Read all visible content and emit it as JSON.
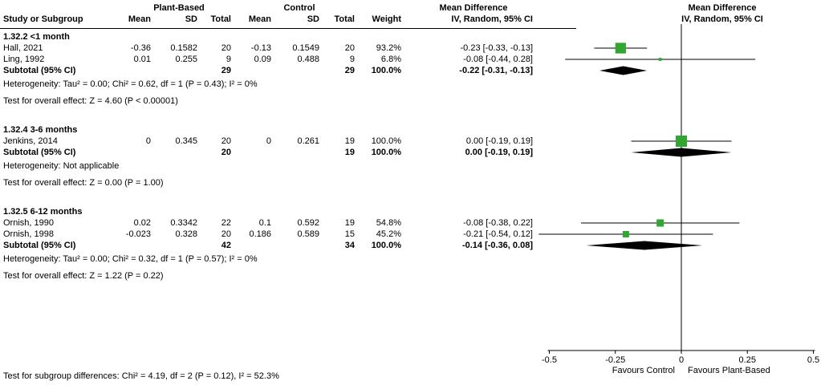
{
  "header": {
    "study_col": "Study or Subgroup",
    "group1": "Plant-Based",
    "group2": "Control",
    "mean": "Mean",
    "sd": "SD",
    "total": "Total",
    "weight": "Weight",
    "md_title": "Mean Difference",
    "md_subtitle": "IV, Random, 95% CI",
    "plot_title": "Mean Difference",
    "plot_subtitle": "IV, Random, 95% CI"
  },
  "footer": {
    "subgroup_test": "Test for subgroup differences: Chi² = 4.19, df = 2 (P = 0.12), I² = 52.3%"
  },
  "chart_data": {
    "type": "forest",
    "effect_measure": "Mean Difference",
    "method": "IV, Random, 95% CI",
    "colors": {
      "marker": "#33a532",
      "diamond": "#000000",
      "line": "#000000"
    },
    "axis": {
      "min": -0.5,
      "max": 0.5,
      "ticks": [
        -0.5,
        -0.25,
        0,
        0.25,
        0.5
      ],
      "tick_labels": [
        "-0.5",
        "-0.25",
        "0",
        "0.25",
        "0.5"
      ],
      "label_left": "Favours Control",
      "label_right": "Favours Plant-Based"
    },
    "subgroups": [
      {
        "label": "1.32.2 <1 month",
        "studies": [
          {
            "name": "Hall, 2021",
            "mean1": "-0.36",
            "sd1": "0.1582",
            "total1": "20",
            "mean2": "-0.13",
            "sd2": "0.1549",
            "total2": "20",
            "weight": "93.2%",
            "ci_text": "-0.23 [-0.33, -0.13]",
            "md": -0.23,
            "low": -0.33,
            "high": -0.13,
            "weight_pct": 93.2
          },
          {
            "name": "Ling, 1992",
            "mean1": "0.01",
            "sd1": "0.255",
            "total1": "9",
            "mean2": "0.09",
            "sd2": "0.488",
            "total2": "9",
            "weight": "6.8%",
            "ci_text": "-0.08 [-0.44, 0.28]",
            "md": -0.08,
            "low": -0.44,
            "high": 0.28,
            "weight_pct": 6.8
          }
        ],
        "subtotal": {
          "label": "Subtotal (95% CI)",
          "total1": "29",
          "total2": "29",
          "weight": "100.0%",
          "ci_text": "-0.22 [-0.31, -0.13]",
          "md": -0.22,
          "low": -0.31,
          "high": -0.13
        },
        "heterogeneity": "Heterogeneity: Tau² = 0.00; Chi² = 0.62, df = 1 (P = 0.43); I² = 0%",
        "overall_effect": "Test for overall effect: Z = 4.60 (P < 0.00001)"
      },
      {
        "label": "1.32.4 3-6 months",
        "studies": [
          {
            "name": "Jenkins, 2014",
            "mean1": "0",
            "sd1": "0.345",
            "total1": "20",
            "mean2": "0",
            "sd2": "0.261",
            "total2": "19",
            "weight": "100.0%",
            "ci_text": "0.00 [-0.19, 0.19]",
            "md": 0.0,
            "low": -0.19,
            "high": 0.19,
            "weight_pct": 100.0
          }
        ],
        "subtotal": {
          "label": "Subtotal (95% CI)",
          "total1": "20",
          "total2": "19",
          "weight": "100.0%",
          "ci_text": "0.00 [-0.19, 0.19]",
          "md": 0.0,
          "low": -0.19,
          "high": 0.19
        },
        "heterogeneity": "Heterogeneity: Not applicable",
        "overall_effect": "Test for overall effect: Z = 0.00 (P = 1.00)"
      },
      {
        "label": "1.32.5 6-12 months",
        "studies": [
          {
            "name": "Ornish, 1990",
            "mean1": "0.02",
            "sd1": "0.3342",
            "total1": "22",
            "mean2": "0.1",
            "sd2": "0.592",
            "total2": "19",
            "weight": "54.8%",
            "ci_text": "-0.08 [-0.38, 0.22]",
            "md": -0.08,
            "low": -0.38,
            "high": 0.22,
            "weight_pct": 54.8
          },
          {
            "name": "Ornish, 1998",
            "mean1": "-0.023",
            "sd1": "0.328",
            "total1": "20",
            "mean2": "0.186",
            "sd2": "0.589",
            "total2": "15",
            "weight": "45.2%",
            "ci_text": "-0.21 [-0.54, 0.12]",
            "md": -0.21,
            "low": -0.54,
            "high": 0.12,
            "weight_pct": 45.2
          }
        ],
        "subtotal": {
          "label": "Subtotal (95% CI)",
          "total1": "42",
          "total2": "34",
          "weight": "100.0%",
          "ci_text": "-0.14 [-0.36, 0.08]",
          "md": -0.14,
          "low": -0.36,
          "high": 0.08
        },
        "heterogeneity": "Heterogeneity: Tau² = 0.00; Chi² = 0.32, df = 1 (P = 0.57); I² = 0%",
        "overall_effect": "Test for overall effect: Z = 1.22 (P = 0.22)"
      }
    ]
  }
}
